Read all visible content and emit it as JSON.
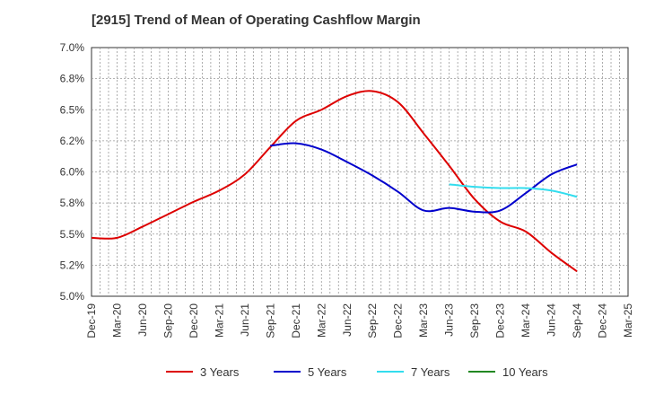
{
  "chart_data": {
    "type": "line",
    "title": "[2915]  Trend of Mean of Operating Cashflow Margin",
    "xlabel": "",
    "ylabel": "",
    "ylim": [
      0.05,
      0.07
    ],
    "y_ticks": [
      "5.0%",
      "5.2%",
      "5.5%",
      "5.8%",
      "6.0%",
      "6.2%",
      "6.5%",
      "6.8%",
      "7.0%"
    ],
    "x_ticks": [
      "Dec-19",
      "Mar-20",
      "Jun-20",
      "Sep-20",
      "Dec-20",
      "Mar-21",
      "Jun-21",
      "Sep-21",
      "Dec-21",
      "Mar-22",
      "Jun-22",
      "Sep-22",
      "Dec-22",
      "Mar-23",
      "Jun-23",
      "Sep-23",
      "Dec-23",
      "Mar-24",
      "Jun-24",
      "Sep-24",
      "Dec-24",
      "Mar-25"
    ],
    "grid": true,
    "legend_position": "bottom",
    "series": [
      {
        "name": "3 Years",
        "color": "#dd0000",
        "values": [
          0.0547,
          0.0547,
          0.0556,
          0.0566,
          0.0576,
          0.0585,
          0.0598,
          0.062,
          0.0641,
          0.065,
          0.0661,
          0.0665,
          0.0656,
          0.0631,
          0.0605,
          0.0578,
          0.056,
          0.0552,
          0.0535,
          0.052
        ]
      },
      {
        "name": "5 Years",
        "color": "#0000cc",
        "values": [
          0.0621,
          0.0623,
          0.0618,
          0.0608,
          0.0597,
          0.0584,
          0.0569,
          0.0571,
          0.0568,
          0.0569,
          0.0583,
          0.0598,
          0.0606
        ]
      },
      {
        "name": "7 Years",
        "color": "#33ddee",
        "values": [
          0.059,
          0.0588,
          0.0587,
          0.0587,
          0.0585,
          0.058
        ]
      },
      {
        "name": "10 Years",
        "color": "#228822",
        "values": []
      }
    ]
  }
}
